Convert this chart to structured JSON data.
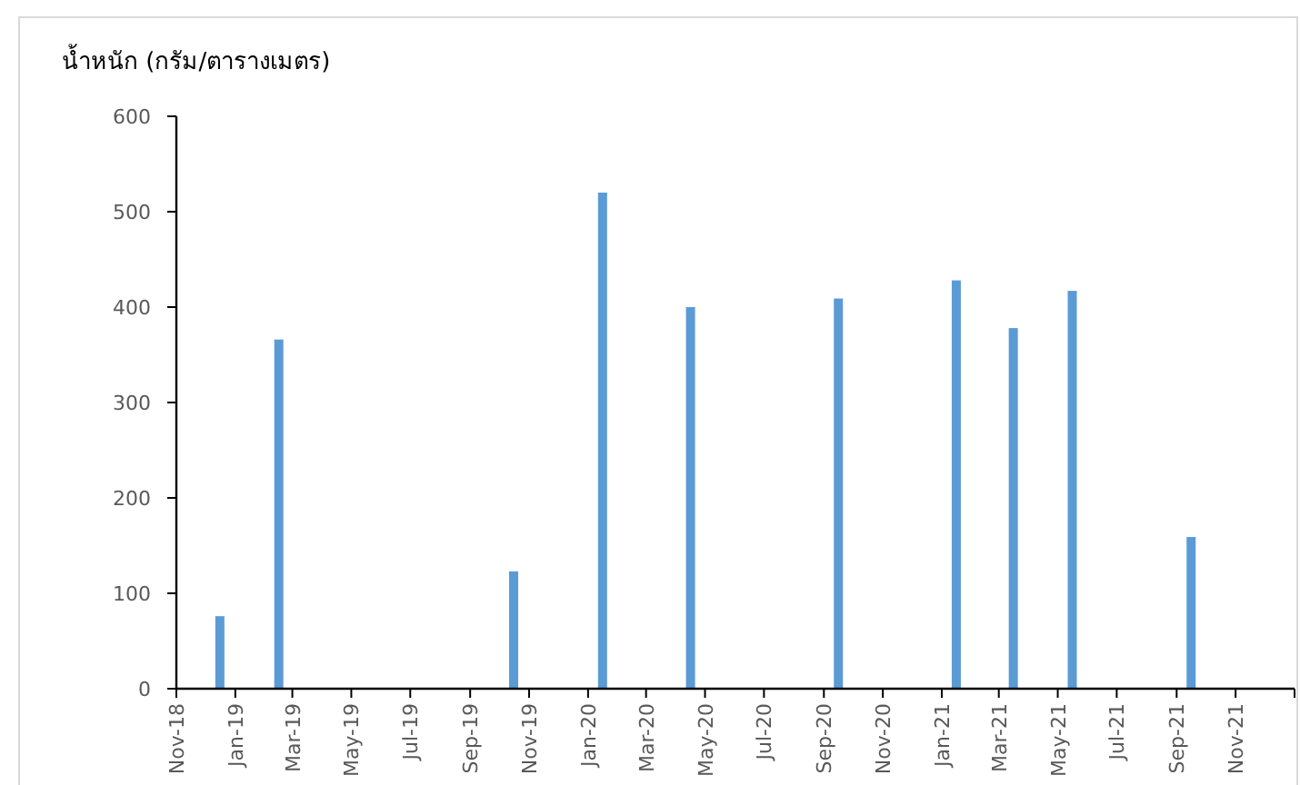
{
  "chart_data": {
    "type": "bar",
    "ylabel": "น้ำหนัก (กรัม/ตารางเมตร)",
    "x": [
      "2018-12-16",
      "2019-02-15",
      "2019-10-16",
      "2020-01-16",
      "2020-04-16",
      "2020-09-16",
      "2021-01-16",
      "2021-03-16",
      "2021-05-16",
      "2021-09-16"
    ],
    "values": [
      76,
      366,
      123,
      520,
      400,
      409,
      428,
      378,
      417,
      159
    ],
    "color": "#5b9bd5",
    "xlim": [
      "2018-11",
      "2022-01"
    ],
    "xticks": [
      {
        "value": "2018-11",
        "label": "Nov-18"
      },
      {
        "value": "2019-01",
        "label": "Jan-19"
      },
      {
        "value": "2019-03",
        "label": "Mar-19"
      },
      {
        "value": "2019-05",
        "label": "May-19"
      },
      {
        "value": "2019-07",
        "label": "Jul-19"
      },
      {
        "value": "2019-09",
        "label": "Sep-19"
      },
      {
        "value": "2019-11",
        "label": "Nov-19"
      },
      {
        "value": "2020-01",
        "label": "Jan-20"
      },
      {
        "value": "2020-03",
        "label": "Mar-20"
      },
      {
        "value": "2020-05",
        "label": "May-20"
      },
      {
        "value": "2020-07",
        "label": "Jul-20"
      },
      {
        "value": "2020-09",
        "label": "Sep-20"
      },
      {
        "value": "2020-11",
        "label": "Nov-20"
      },
      {
        "value": "2021-01",
        "label": "Jan-21"
      },
      {
        "value": "2021-03",
        "label": "Mar-21"
      },
      {
        "value": "2021-05",
        "label": "May-21"
      },
      {
        "value": "2021-07",
        "label": "Jul-21"
      },
      {
        "value": "2021-09",
        "label": "Sep-21"
      },
      {
        "value": "2021-11",
        "label": "Nov-21"
      },
      {
        "value": "2022-01",
        "label": null
      }
    ],
    "ylim": [
      0,
      600
    ],
    "yticks": [
      0,
      100,
      200,
      300,
      400,
      500,
      600
    ],
    "grid": false
  }
}
